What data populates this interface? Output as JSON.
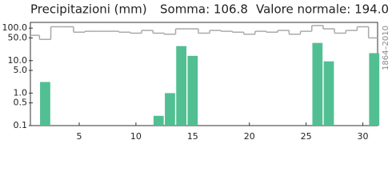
{
  "chart_data": {
    "type": "bar",
    "title": "Precipitazioni (mm)",
    "sum_text": "Somma: 106.8",
    "normal_text": "Valore normale: 194.0",
    "period": "1864–2010",
    "log_scale": true,
    "x": [
      1,
      2,
      3,
      4,
      5,
      6,
      7,
      8,
      9,
      10,
      11,
      12,
      13,
      14,
      15,
      16,
      17,
      18,
      19,
      20,
      21,
      22,
      23,
      24,
      25,
      26,
      27,
      28,
      29,
      30,
      31
    ],
    "series": [
      {
        "name": "Precipitazioni",
        "color": "#52bf93",
        "values": [
          null,
          2.2,
          null,
          null,
          null,
          null,
          null,
          null,
          null,
          null,
          null,
          0.2,
          1.0,
          28,
          14,
          null,
          null,
          null,
          null,
          null,
          null,
          null,
          null,
          null,
          null,
          35,
          9.5,
          null,
          null,
          null,
          17
        ]
      },
      {
        "name": "Valore normale",
        "color": "#aaaaaa",
        "values": [
          60,
          45,
          110,
          110,
          75,
          80,
          80,
          80,
          75,
          70,
          85,
          70,
          65,
          95,
          95,
          70,
          85,
          80,
          75,
          65,
          80,
          75,
          85,
          65,
          80,
          120,
          95,
          70,
          85,
          110,
          50
        ]
      }
    ],
    "xlim": [
      0.7,
      31.3
    ],
    "xticks": [
      5,
      10,
      15,
      20,
      25,
      30
    ],
    "ylim": [
      0.1,
      150
    ],
    "yticks": [
      {
        "value": 100,
        "label": "100.0"
      },
      {
        "value": 50,
        "label": "50.0"
      },
      {
        "value": 10,
        "label": "10.0"
      },
      {
        "value": 5,
        "label": "5.0"
      },
      {
        "value": 1,
        "label": "1.0"
      },
      {
        "value": 0.5,
        "label": "0.5"
      },
      {
        "value": 0.1,
        "label": "0.1"
      }
    ]
  }
}
